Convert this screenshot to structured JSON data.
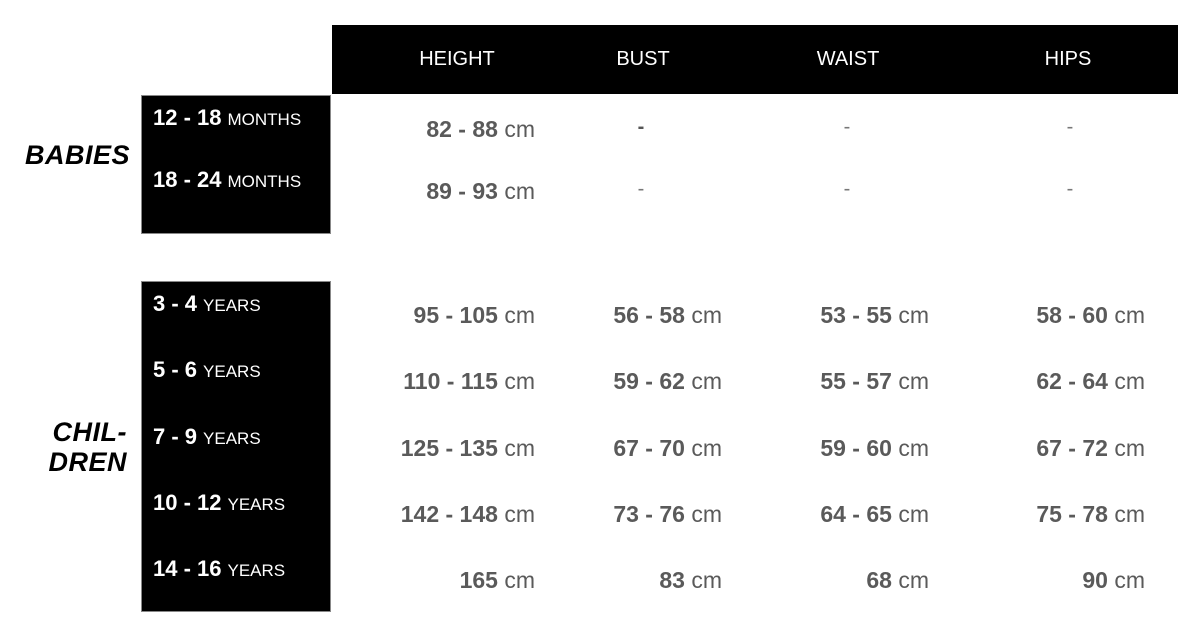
{
  "columns": [
    "HEIGHT",
    "BUST",
    "WAIST",
    "HIPS"
  ],
  "unit": "cm",
  "groups": [
    {
      "label": "BABIES",
      "rows": [
        {
          "age": "12 - 18",
          "period": "MONTHS",
          "values": [
            "82 - 88",
            "-",
            "-",
            "-"
          ]
        },
        {
          "age": "18 - 24",
          "period": "MONTHS",
          "values": [
            "89 - 93",
            "-",
            "-",
            "-"
          ]
        }
      ]
    },
    {
      "label_lines": [
        "CHIL-",
        "DREN"
      ],
      "rows": [
        {
          "age": "3 - 4",
          "period": "YEARS",
          "values": [
            "95 - 105",
            "56 - 58",
            "53 - 55",
            "58 - 60"
          ]
        },
        {
          "age": "5 - 6",
          "period": "YEARS",
          "values": [
            "110 - 115",
            "59 - 62",
            "55 - 57",
            "62 - 64"
          ]
        },
        {
          "age": "7 - 9",
          "period": "YEARS",
          "values": [
            "125 - 135",
            "67 - 70",
            "59 - 60",
            "67 - 72"
          ]
        },
        {
          "age": "10 - 12",
          "period": "YEARS",
          "values": [
            "142 - 148",
            "73 - 76",
            "64 - 65",
            "75 - 78"
          ]
        },
        {
          "age": "14 - 16",
          "period": "YEARS",
          "values": [
            "165",
            "83",
            "68",
            "90"
          ]
        }
      ]
    }
  ]
}
